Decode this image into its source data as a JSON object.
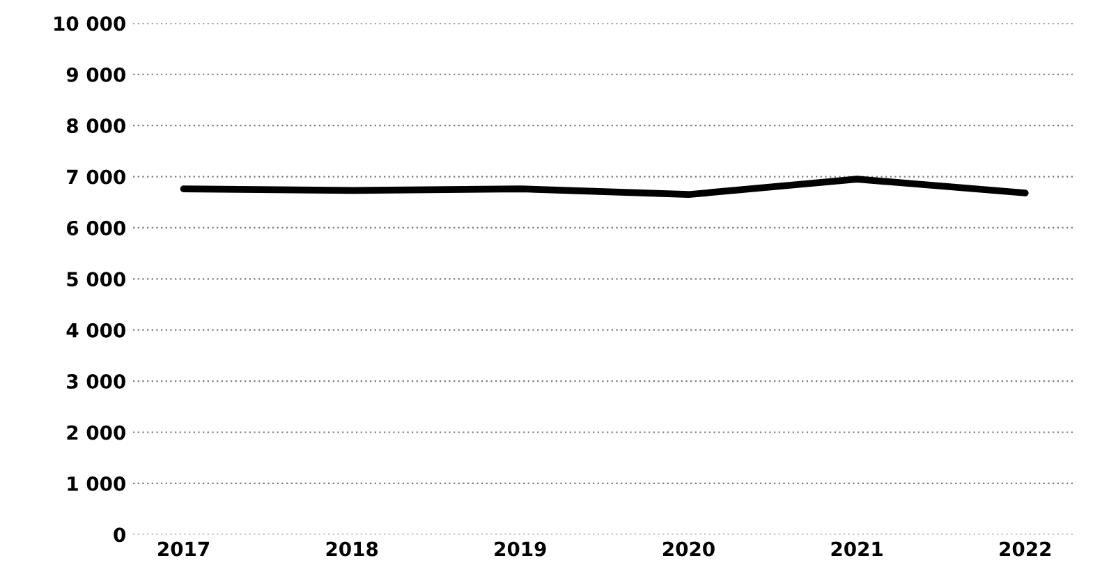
{
  "chart_data": {
    "type": "line",
    "categories": [
      "2017",
      "2018",
      "2019",
      "2020",
      "2021",
      "2022"
    ],
    "series": [
      {
        "color": "#000000",
        "values": [
          6760,
          6730,
          6760,
          6650,
          6950,
          6680
        ]
      }
    ],
    "ylim": [
      0,
      10000
    ],
    "yticks": [
      {
        "value": 0,
        "label": "0"
      },
      {
        "value": 1000,
        "label": "1 000"
      },
      {
        "value": 2000,
        "label": "2 000"
      },
      {
        "value": 3000,
        "label": "3 000"
      },
      {
        "value": 4000,
        "label": "4 000"
      },
      {
        "value": 5000,
        "label": "5 000"
      },
      {
        "value": 6000,
        "label": "6 000"
      },
      {
        "value": 7000,
        "label": "7 000"
      },
      {
        "value": 8000,
        "label": "8 000"
      },
      {
        "value": 9000,
        "label": "9 000"
      },
      {
        "value": 10000,
        "label": "10 000"
      }
    ],
    "grid": "y",
    "line_style": "solid",
    "marker": "none"
  }
}
